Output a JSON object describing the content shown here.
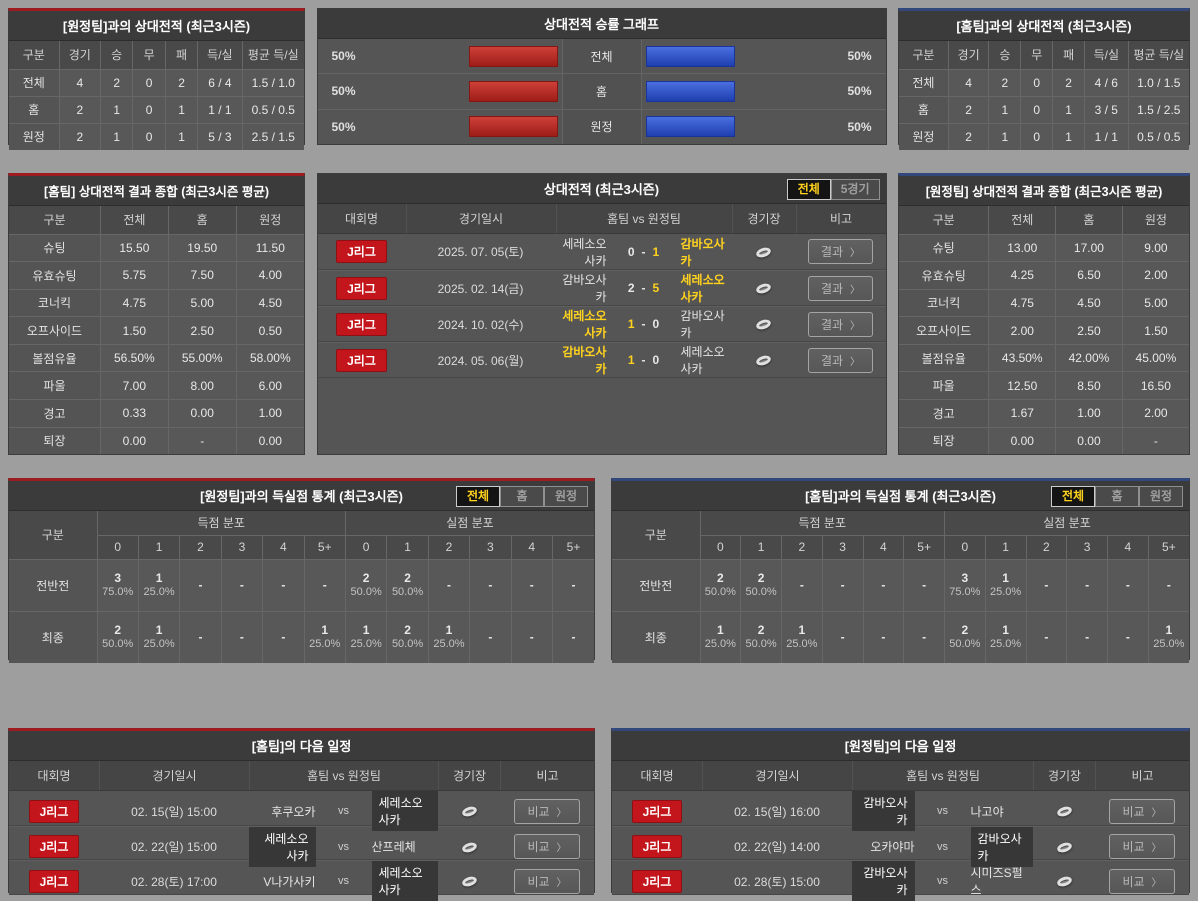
{
  "ui": {
    "chevron": "〉",
    "score_sep": "-",
    "vs": "vs"
  },
  "colors": {
    "accent_red": "#c3161c",
    "bar_red": "#9e1d17",
    "bar_blue": "#2c50c8",
    "highlight_yellow": "#ffd21e",
    "border_red": "#9d1c22",
    "border_blue": "#32487c"
  },
  "top_left": {
    "title": "[원정팀]과의 상대전적 (최근3시즌)",
    "headers": [
      "구분",
      "경기",
      "승",
      "무",
      "패",
      "득/실",
      "평균 득/실"
    ],
    "rows": [
      [
        "전체",
        "4",
        "2",
        "0",
        "2",
        "6 / 4",
        "1.5 / 1.0"
      ],
      [
        "홈",
        "2",
        "1",
        "0",
        "1",
        "1 / 1",
        "0.5 / 0.5"
      ],
      [
        "원정",
        "2",
        "1",
        "0",
        "1",
        "5 / 3",
        "2.5 / 1.5"
      ]
    ]
  },
  "win_graph": {
    "title": "상대전적 승률 그래프",
    "rows": [
      {
        "left_label": "50%",
        "left_pct": 50,
        "label": "전체",
        "right_pct": 50,
        "right_label": "50%"
      },
      {
        "left_label": "50%",
        "left_pct": 50,
        "label": "홈",
        "right_pct": 50,
        "right_label": "50%"
      },
      {
        "left_label": "50%",
        "left_pct": 50,
        "label": "원정",
        "right_pct": 50,
        "right_label": "50%"
      }
    ]
  },
  "top_right": {
    "title": "[홈팀]과의 상대전적 (최근3시즌)",
    "headers": [
      "구분",
      "경기",
      "승",
      "무",
      "패",
      "득/실",
      "평균 득/실"
    ],
    "rows": [
      [
        "전체",
        "4",
        "2",
        "0",
        "2",
        "4 / 6",
        "1.0 / 1.5"
      ],
      [
        "홈",
        "2",
        "1",
        "0",
        "1",
        "3 / 5",
        "1.5 / 2.5"
      ],
      [
        "원정",
        "2",
        "1",
        "0",
        "1",
        "1 / 1",
        "0.5 / 0.5"
      ]
    ]
  },
  "summary_home": {
    "title": "[홈팀] 상대전적 결과 종합 (최근3시즌 평균)",
    "headers": [
      "구분",
      "전체",
      "홈",
      "원정"
    ],
    "rows": [
      {
        "label": "슈팅",
        "v": [
          "15.50",
          "19.50",
          "11.50"
        ]
      },
      {
        "label": "유효슈팅",
        "v": [
          "5.75",
          "7.50",
          "4.00"
        ]
      },
      {
        "label": "코너킥",
        "v": [
          "4.75",
          "5.00",
          "4.50"
        ]
      },
      {
        "label": "오프사이드",
        "v": [
          "1.50",
          "2.50",
          "0.50"
        ]
      },
      {
        "label": "볼점유율",
        "v": [
          "56.50%",
          "55.00%",
          "58.00%"
        ]
      },
      {
        "label": "파울",
        "v": [
          "7.00",
          "8.00",
          "6.00"
        ]
      },
      {
        "label": "경고",
        "v": [
          "0.33",
          "0.00",
          "1.00"
        ]
      },
      {
        "label": "퇴장",
        "v": [
          "0.00",
          "-",
          "0.00"
        ]
      }
    ]
  },
  "h2h": {
    "title": "상대전적 (최근3시즌)",
    "tabs": [
      {
        "label": "전체",
        "active": true
      },
      {
        "label": "5경기",
        "active": false
      }
    ],
    "headers": {
      "league": "대회명",
      "datetime": "경기일시",
      "teams": "홈팀  vs  원정팀",
      "stadium": "경기장",
      "note": "비고"
    },
    "note_label": "결과",
    "matches": [
      {
        "league": "J리그",
        "datetime": "2025. 07. 05(토)",
        "home": "세레소오사카",
        "home_score": "0",
        "away_score": "1",
        "away": "감바오사카",
        "home_win": false,
        "away_win": true
      },
      {
        "league": "J리그",
        "datetime": "2025. 02. 14(금)",
        "home": "감바오사카",
        "home_score": "2",
        "away_score": "5",
        "away": "세레소오사카",
        "home_win": false,
        "away_win": true
      },
      {
        "league": "J리그",
        "datetime": "2024. 10. 02(수)",
        "home": "세레소오사카",
        "home_score": "1",
        "away_score": "0",
        "away": "감바오사카",
        "home_win": true,
        "away_win": false
      },
      {
        "league": "J리그",
        "datetime": "2024. 05. 06(월)",
        "home": "감바오사카",
        "home_score": "1",
        "away_score": "0",
        "away": "세레소오사카",
        "home_win": true,
        "away_win": false
      }
    ]
  },
  "summary_away": {
    "title": "[원정팀] 상대전적 결과 종합 (최근3시즌 평균)",
    "headers": [
      "구분",
      "전체",
      "홈",
      "원정"
    ],
    "rows": [
      {
        "label": "슈팅",
        "v": [
          "13.00",
          "17.00",
          "9.00"
        ]
      },
      {
        "label": "유효슈팅",
        "v": [
          "4.25",
          "6.50",
          "2.00"
        ]
      },
      {
        "label": "코너킥",
        "v": [
          "4.75",
          "4.50",
          "5.00"
        ]
      },
      {
        "label": "오프사이드",
        "v": [
          "2.00",
          "2.50",
          "1.50"
        ]
      },
      {
        "label": "볼점유율",
        "v": [
          "43.50%",
          "42.00%",
          "45.00%"
        ]
      },
      {
        "label": "파울",
        "v": [
          "12.50",
          "8.50",
          "16.50"
        ]
      },
      {
        "label": "경고",
        "v": [
          "1.67",
          "1.00",
          "2.00"
        ]
      },
      {
        "label": "퇴장",
        "v": [
          "0.00",
          "0.00",
          "-"
        ]
      }
    ]
  },
  "goals_left": {
    "title": "[원정팀]과의 득실점 통계 (최근3시즌)",
    "tabs": [
      {
        "label": "전체",
        "active": true
      },
      {
        "label": "홈",
        "active": false
      },
      {
        "label": "원정",
        "active": false
      }
    ],
    "corner": "구분",
    "group_goals": "득점 분포",
    "group_conceded": "실점 분포",
    "cols": [
      "0",
      "1",
      "2",
      "3",
      "4",
      "5+"
    ],
    "rows": [
      {
        "label": "전반전",
        "cells": [
          {
            "n": "3",
            "p": "75.0%"
          },
          {
            "n": "1",
            "p": "25.0%"
          },
          {
            "n": "-",
            "p": ""
          },
          {
            "n": "-",
            "p": ""
          },
          {
            "n": "-",
            "p": ""
          },
          {
            "n": "-",
            "p": ""
          },
          {
            "n": "2",
            "p": "50.0%"
          },
          {
            "n": "2",
            "p": "50.0%"
          },
          {
            "n": "-",
            "p": ""
          },
          {
            "n": "-",
            "p": ""
          },
          {
            "n": "-",
            "p": ""
          },
          {
            "n": "-",
            "p": ""
          }
        ]
      },
      {
        "label": "최종",
        "cells": [
          {
            "n": "2",
            "p": "50.0%"
          },
          {
            "n": "1",
            "p": "25.0%"
          },
          {
            "n": "-",
            "p": ""
          },
          {
            "n": "-",
            "p": ""
          },
          {
            "n": "-",
            "p": ""
          },
          {
            "n": "1",
            "p": "25.0%"
          },
          {
            "n": "1",
            "p": "25.0%"
          },
          {
            "n": "2",
            "p": "50.0%"
          },
          {
            "n": "1",
            "p": "25.0%"
          },
          {
            "n": "-",
            "p": ""
          },
          {
            "n": "-",
            "p": ""
          },
          {
            "n": "-",
            "p": ""
          }
        ]
      }
    ]
  },
  "goals_right": {
    "title": "[홈팀]과의 득실점 통계 (최근3시즌)",
    "tabs": [
      {
        "label": "전체",
        "active": true
      },
      {
        "label": "홈",
        "active": false
      },
      {
        "label": "원정",
        "active": false
      }
    ],
    "corner": "구분",
    "group_goals": "득점 분포",
    "group_conceded": "실점 분포",
    "cols": [
      "0",
      "1",
      "2",
      "3",
      "4",
      "5+"
    ],
    "rows": [
      {
        "label": "전반전",
        "cells": [
          {
            "n": "2",
            "p": "50.0%"
          },
          {
            "n": "2",
            "p": "50.0%"
          },
          {
            "n": "-",
            "p": ""
          },
          {
            "n": "-",
            "p": ""
          },
          {
            "n": "-",
            "p": ""
          },
          {
            "n": "-",
            "p": ""
          },
          {
            "n": "3",
            "p": "75.0%"
          },
          {
            "n": "1",
            "p": "25.0%"
          },
          {
            "n": "-",
            "p": ""
          },
          {
            "n": "-",
            "p": ""
          },
          {
            "n": "-",
            "p": ""
          },
          {
            "n": "-",
            "p": ""
          }
        ]
      },
      {
        "label": "최종",
        "cells": [
          {
            "n": "1",
            "p": "25.0%"
          },
          {
            "n": "2",
            "p": "50.0%"
          },
          {
            "n": "1",
            "p": "25.0%"
          },
          {
            "n": "-",
            "p": ""
          },
          {
            "n": "-",
            "p": ""
          },
          {
            "n": "-",
            "p": ""
          },
          {
            "n": "2",
            "p": "50.0%"
          },
          {
            "n": "1",
            "p": "25.0%"
          },
          {
            "n": "-",
            "p": ""
          },
          {
            "n": "-",
            "p": ""
          },
          {
            "n": "-",
            "p": ""
          },
          {
            "n": "1",
            "p": "25.0%"
          }
        ]
      }
    ]
  },
  "schedule_home": {
    "title": "[홈팀]의 다음 일정",
    "headers": {
      "league": "대회명",
      "datetime": "경기일시",
      "teams": "홈팀  vs  원정팀",
      "stadium": "경기장",
      "note": "비고"
    },
    "note_label": "비교",
    "rows": [
      {
        "league": "J리그",
        "datetime": "02. 15(일) 15:00",
        "home": "후쿠오카",
        "away": "세레소오사카",
        "home_focus": false,
        "away_focus": true
      },
      {
        "league": "J리그",
        "datetime": "02. 22(일) 15:00",
        "home": "세레소오사카",
        "away": "산프레체",
        "home_focus": true,
        "away_focus": false
      },
      {
        "league": "J리그",
        "datetime": "02. 28(토) 17:00",
        "home": "V나가사키",
        "away": "세레소오사카",
        "home_focus": false,
        "away_focus": true
      }
    ]
  },
  "schedule_away": {
    "title": "[원정팀]의 다음 일정",
    "headers": {
      "league": "대회명",
      "datetime": "경기일시",
      "teams": "홈팀  vs  원정팀",
      "stadium": "경기장",
      "note": "비고"
    },
    "note_label": "비교",
    "rows": [
      {
        "league": "J리그",
        "datetime": "02. 15(일) 16:00",
        "home": "감바오사카",
        "away": "나고야",
        "home_focus": true,
        "away_focus": false
      },
      {
        "league": "J리그",
        "datetime": "02. 22(일) 14:00",
        "home": "오카야마",
        "away": "감바오사카",
        "home_focus": false,
        "away_focus": true
      },
      {
        "league": "J리그",
        "datetime": "02. 28(토) 15:00",
        "home": "감바오사카",
        "away": "시미즈S펄스",
        "home_focus": true,
        "away_focus": false
      }
    ]
  }
}
